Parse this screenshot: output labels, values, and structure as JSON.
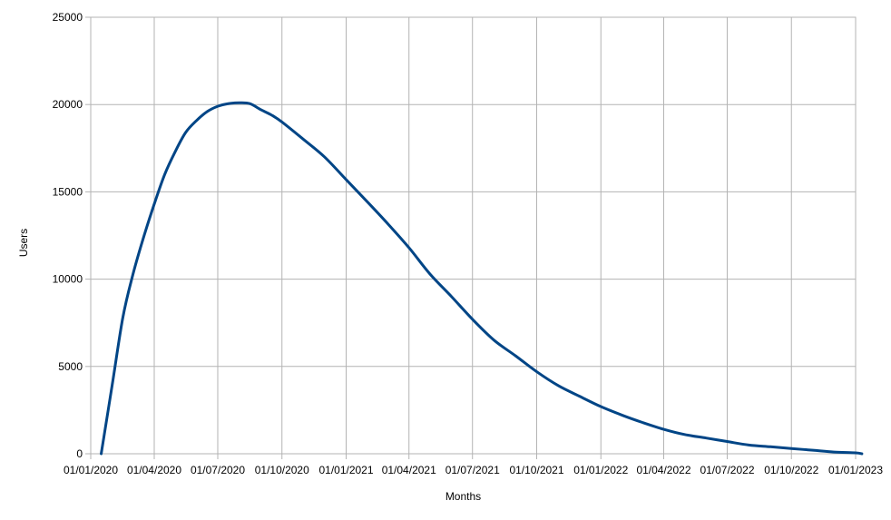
{
  "chart_data": {
    "type": "line",
    "title": "",
    "xlabel": "Months",
    "ylabel": "Users",
    "xlim": [
      "2020-01-01",
      "2023-01-01"
    ],
    "ylim": [
      0,
      25000
    ],
    "grid": true,
    "legend": "none",
    "x_ticks": [
      "01/01/2020",
      "01/04/2020",
      "01/07/2020",
      "01/10/2020",
      "01/01/2021",
      "01/04/2021",
      "01/07/2021",
      "01/10/2021",
      "01/01/2022",
      "01/04/2022",
      "01/07/2022",
      "01/10/2022",
      "01/01/2023"
    ],
    "y_ticks": [
      "0",
      "5000",
      "10000",
      "15000",
      "20000",
      "25000"
    ],
    "colors": {
      "series": "#004586",
      "grid": "#b3b3b3",
      "axis": "#b3b3b3"
    },
    "series": [
      {
        "x": [
          "2020-01-16",
          "2020-02-01",
          "2020-02-16",
          "2020-03-01",
          "2020-03-16",
          "2020-04-01",
          "2020-04-16",
          "2020-05-01",
          "2020-05-16",
          "2020-06-01",
          "2020-06-16",
          "2020-07-01",
          "2020-07-16",
          "2020-08-01",
          "2020-08-16",
          "2020-09-01",
          "2020-09-16",
          "2020-10-01",
          "2020-11-01",
          "2020-12-01",
          "2021-01-01",
          "2021-02-01",
          "2021-03-01",
          "2021-04-01",
          "2021-05-01",
          "2021-06-01",
          "2021-07-01",
          "2021-08-01",
          "2021-09-01",
          "2021-10-01",
          "2021-11-01",
          "2021-12-01",
          "2022-01-01",
          "2022-02-01",
          "2022-03-01",
          "2022-04-01",
          "2022-05-01",
          "2022-06-01",
          "2022-07-01",
          "2022-08-01",
          "2022-09-01",
          "2022-10-01",
          "2022-11-01",
          "2022-12-01",
          "2023-01-01",
          "2023-01-10"
        ],
        "y": [
          0,
          4000,
          7800,
          10200,
          12300,
          14300,
          16000,
          17300,
          18400,
          19100,
          19600,
          19900,
          20050,
          20100,
          20050,
          19700,
          19400,
          19000,
          18000,
          17000,
          15700,
          14400,
          13200,
          11800,
          10300,
          9000,
          7700,
          6500,
          5600,
          4700,
          3900,
          3300,
          2700,
          2200,
          1800,
          1400,
          1100,
          900,
          700,
          500,
          400,
          300,
          200,
          100,
          50,
          0
        ]
      }
    ]
  }
}
